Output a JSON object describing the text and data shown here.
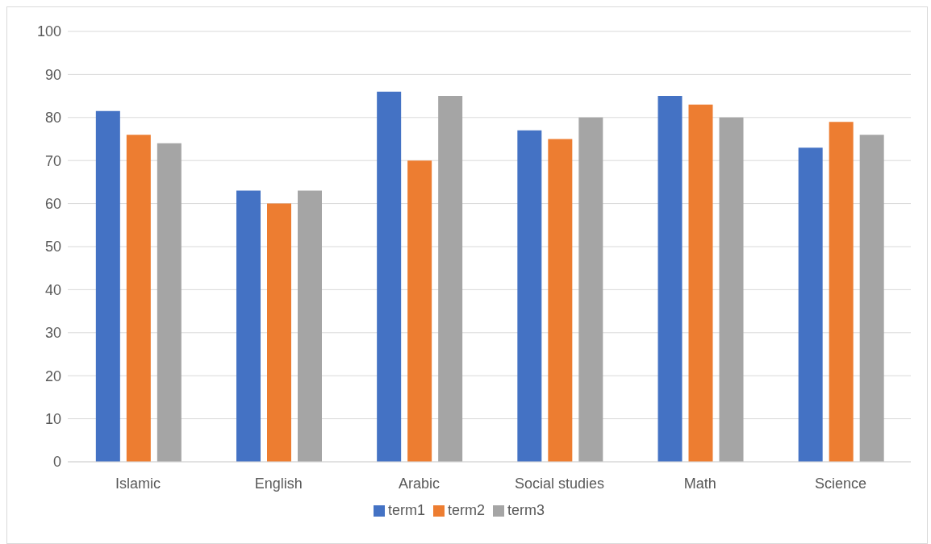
{
  "chart_data": {
    "type": "bar",
    "categories": [
      "Islamic",
      "English",
      "Arabic",
      "Social studies",
      "Math",
      "Science"
    ],
    "series": [
      {
        "name": "term1",
        "color": "#4472c4",
        "values": [
          81.5,
          63,
          86,
          77,
          85,
          73
        ]
      },
      {
        "name": "term2",
        "color": "#ed7d31",
        "values": [
          76,
          60,
          70,
          75,
          83,
          79
        ]
      },
      {
        "name": "term3",
        "color": "#a5a5a5",
        "values": [
          74,
          63,
          85,
          80,
          80,
          76
        ]
      }
    ],
    "ylim": [
      0,
      100
    ],
    "yticks": [
      0,
      10,
      20,
      30,
      40,
      50,
      60,
      70,
      80,
      90,
      100
    ],
    "grid": "y",
    "legend": "bottom"
  }
}
